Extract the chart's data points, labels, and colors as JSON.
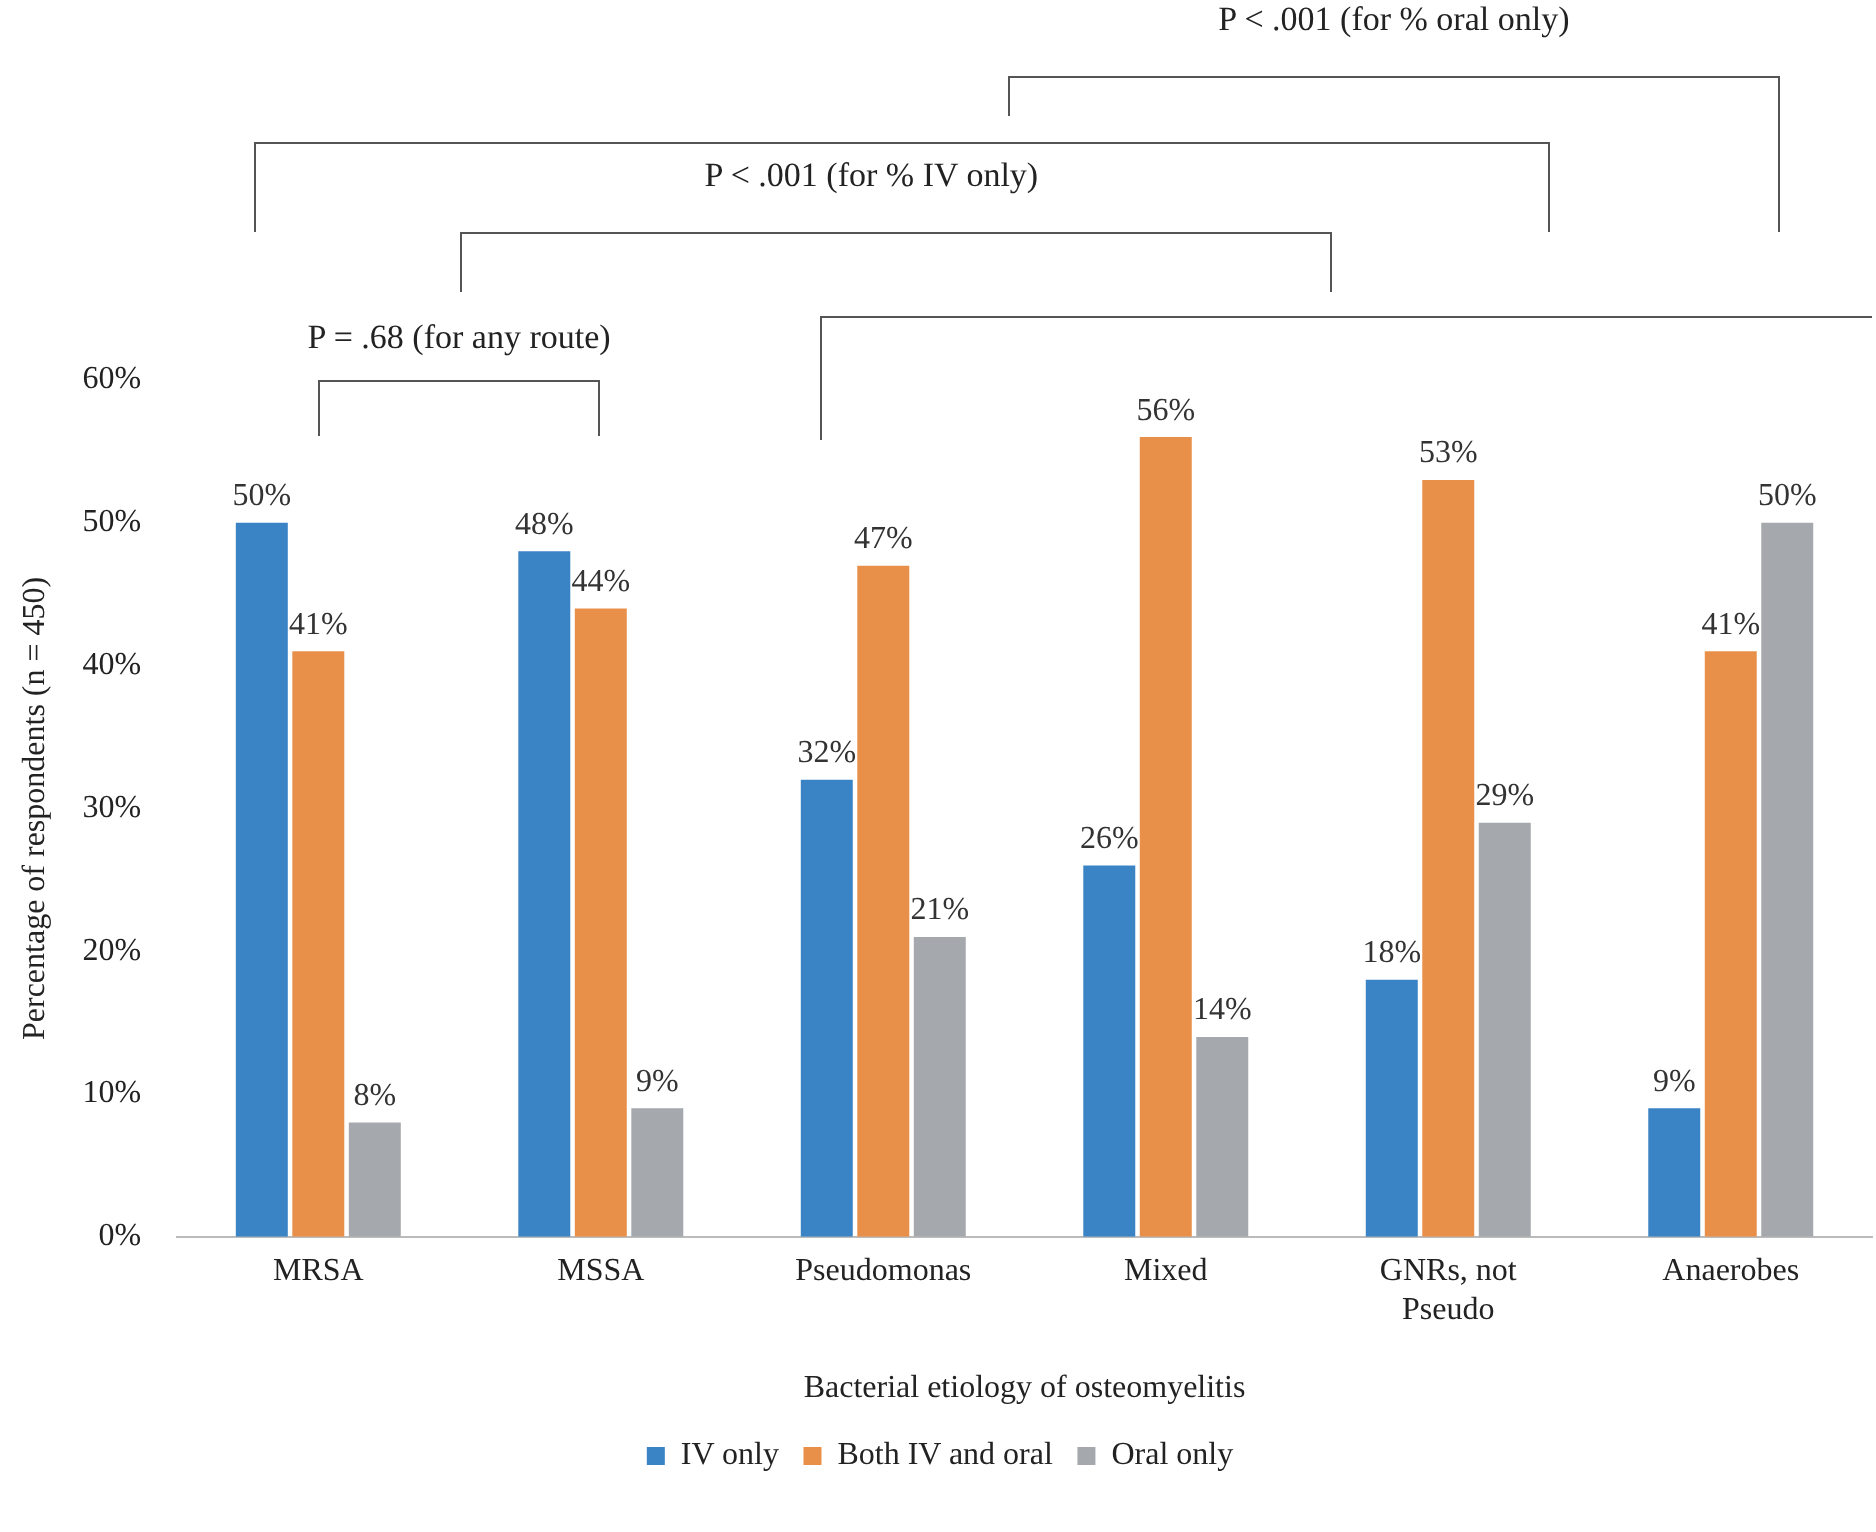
{
  "chart_data": {
    "type": "bar",
    "xlabel": "Bacterial etiology of osteomyelitis",
    "ylabel": "Percentage of respondents (n = 450)",
    "categories": [
      "MRSA",
      "MSSA",
      "Pseudomonas",
      "Mixed",
      "GNRs, not Pseudo",
      "Anaerobes"
    ],
    "series": [
      {
        "name": "IV only",
        "color": "#3a83c5",
        "values": [
          50,
          48,
          32,
          26,
          18,
          9
        ]
      },
      {
        "name": "Both IV and oral",
        "color": "#e8904a",
        "values": [
          41,
          44,
          47,
          56,
          53,
          41
        ]
      },
      {
        "name": "Oral only",
        "color": "#a5a9ad",
        "values": [
          8,
          9,
          21,
          14,
          29,
          50
        ]
      }
    ],
    "ylim": [
      0,
      60
    ],
    "yticks": [
      {
        "value": 0,
        "label": "0%"
      },
      {
        "value": 10,
        "label": "10%"
      },
      {
        "value": 20,
        "label": "20%"
      },
      {
        "value": 30,
        "label": "30%"
      },
      {
        "value": 40,
        "label": "40%"
      },
      {
        "value": 50,
        "label": "50%"
      },
      {
        "value": 60,
        "label": "60%"
      }
    ],
    "value_labels": [
      [
        "50%",
        "48%",
        "32%",
        "26%",
        "18%",
        "9%"
      ],
      [
        "41%",
        "44%",
        "47%",
        "56%",
        "53%",
        "41%"
      ],
      [
        "8%",
        "9%",
        "21%",
        "14%",
        "29%",
        "50%"
      ]
    ],
    "grid": false,
    "legend": "bottom",
    "annotations": [
      "P < .001 (for % oral only)",
      "P < .001 (for % IV only)",
      "P = .68 (for any route)"
    ]
  }
}
